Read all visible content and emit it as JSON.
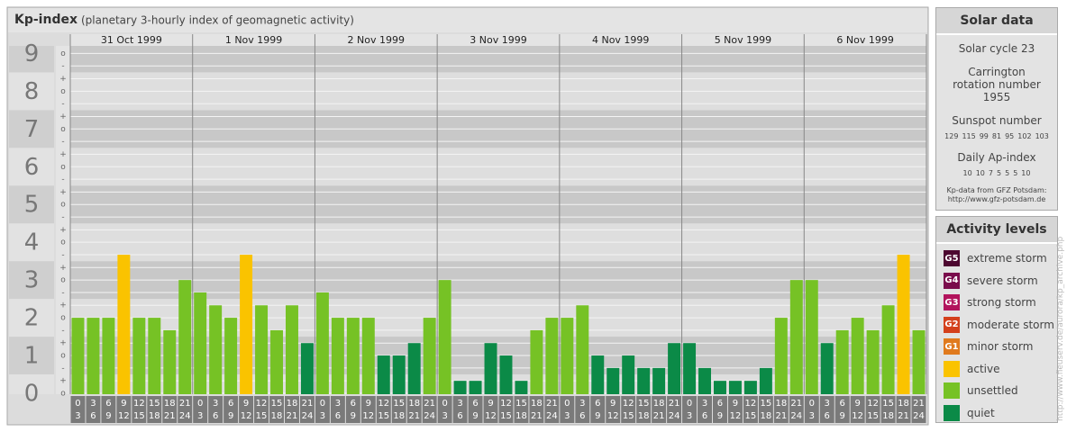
{
  "chart_data": {
    "type": "bar",
    "title": "Kp-index",
    "subtitle": "(planetary 3-hourly index of geomagnetic activity)",
    "days": [
      "31 Oct 1999",
      "1 Nov 1999",
      "2 Nov 1999",
      "3 Nov 1999",
      "4 Nov 1999",
      "5 Nov 1999",
      "6 Nov 1999"
    ],
    "hours": [
      [
        "0",
        "3"
      ],
      [
        "3",
        "6"
      ],
      [
        "6",
        "9"
      ],
      [
        "9",
        "12"
      ],
      [
        "12",
        "15"
      ],
      [
        "15",
        "18"
      ],
      [
        "18",
        "21"
      ],
      [
        "21",
        "24"
      ]
    ],
    "values": [
      2,
      2,
      2,
      3.67,
      2,
      2,
      1.67,
      3,
      2.67,
      2.33,
      2,
      3.67,
      2.33,
      1.67,
      2.33,
      1.33,
      2.67,
      2,
      2,
      2,
      1,
      1,
      1.33,
      2,
      3,
      0.33,
      0.33,
      1.33,
      1,
      0.33,
      1.67,
      2,
      2,
      2.33,
      1,
      0.67,
      1,
      0.67,
      0.67,
      1.33,
      1.33,
      0.67,
      0.33,
      0.33,
      0.33,
      0.67,
      2,
      3,
      3,
      1.33,
      1.67,
      2,
      1.67,
      2.33,
      3.67,
      1.67
    ],
    "colors": [
      "#76c225",
      "#76c225",
      "#76c225",
      "#fac300",
      "#76c225",
      "#76c225",
      "#76c225",
      "#76c225",
      "#76c225",
      "#76c225",
      "#76c225",
      "#fac300",
      "#76c225",
      "#76c225",
      "#76c225",
      "#0b8a47",
      "#76c225",
      "#76c225",
      "#76c225",
      "#76c225",
      "#0b8a47",
      "#0b8a47",
      "#0b8a47",
      "#76c225",
      "#76c225",
      "#0b8a47",
      "#0b8a47",
      "#0b8a47",
      "#0b8a47",
      "#0b8a47",
      "#76c225",
      "#76c225",
      "#76c225",
      "#76c225",
      "#0b8a47",
      "#0b8a47",
      "#0b8a47",
      "#0b8a47",
      "#0b8a47",
      "#0b8a47",
      "#0b8a47",
      "#0b8a47",
      "#0b8a47",
      "#0b8a47",
      "#0b8a47",
      "#0b8a47",
      "#76c225",
      "#76c225",
      "#76c225",
      "#0b8a47",
      "#76c225",
      "#76c225",
      "#76c225",
      "#76c225",
      "#fac300",
      "#76c225"
    ],
    "ylim": [
      0,
      9.2
    ],
    "yticks": [
      0,
      1,
      2,
      3,
      4,
      5,
      6,
      7,
      8,
      9
    ],
    "minor_ticks": [
      {
        "value": 0,
        "label": "o"
      },
      {
        "value": 0.33,
        "label": "+"
      },
      {
        "value": 0.67,
        "label": "-"
      },
      {
        "value": 1,
        "label": "o"
      },
      {
        "value": 1.33,
        "label": "+"
      },
      {
        "value": 1.67,
        "label": "-"
      },
      {
        "value": 2,
        "label": "o"
      },
      {
        "value": 2.33,
        "label": "+"
      },
      {
        "value": 2.67,
        "label": "-"
      },
      {
        "value": 3,
        "label": "o"
      },
      {
        "value": 3.33,
        "label": "+"
      },
      {
        "value": 3.67,
        "label": "-"
      },
      {
        "value": 4,
        "label": "o"
      },
      {
        "value": 4.33,
        "label": "+"
      },
      {
        "value": 4.67,
        "label": "-"
      },
      {
        "value": 5,
        "label": "o"
      },
      {
        "value": 5.33,
        "label": "+"
      },
      {
        "value": 5.67,
        "label": "-"
      },
      {
        "value": 6,
        "label": "o"
      },
      {
        "value": 6.33,
        "label": "+"
      },
      {
        "value": 6.67,
        "label": "-"
      },
      {
        "value": 7,
        "label": "o"
      },
      {
        "value": 7.33,
        "label": "+"
      },
      {
        "value": 7.67,
        "label": "-"
      },
      {
        "value": 8,
        "label": "o"
      },
      {
        "value": 8.33,
        "label": "+"
      },
      {
        "value": 8.67,
        "label": "-"
      },
      {
        "value": 9,
        "label": "o"
      }
    ],
    "grid": true
  },
  "solar_data": {
    "title": "Solar data",
    "cycle": "Solar cycle 23",
    "carrington": "Carrington rotation number 1955",
    "sunspot_label": "Sunspot number",
    "sunspot": [
      129,
      115,
      99,
      81,
      95,
      102,
      103
    ],
    "ap_label": "Daily Ap-index",
    "ap": [
      10,
      10,
      7,
      5,
      5,
      5,
      10
    ],
    "credit": "Kp-data from GFZ Potsdam:",
    "credit_url": "http://www.gfz-potsdam.de"
  },
  "activity_levels": {
    "title": "Activity levels",
    "items": [
      {
        "badge": "G5",
        "label": "extreme storm",
        "color": "#4d0730"
      },
      {
        "badge": "G4",
        "label": "severe storm",
        "color": "#7a0c4c"
      },
      {
        "badge": "G3",
        "label": "strong storm",
        "color": "#b2135c"
      },
      {
        "badge": "G2",
        "label": "moderate storm",
        "color": "#d4401c"
      },
      {
        "badge": "G1",
        "label": "minor storm",
        "color": "#e07a1e"
      },
      {
        "label": "active",
        "color": "#fac300"
      },
      {
        "label": "unsettled",
        "color": "#76c225"
      },
      {
        "label": "quiet",
        "color": "#0b8a47"
      }
    ]
  },
  "side_url": "http://www.fieuserv.de/aurora/kp_archive.php"
}
